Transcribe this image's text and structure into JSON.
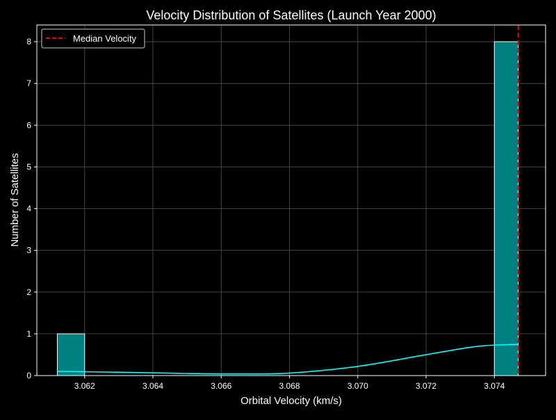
{
  "chart_data": {
    "type": "bar",
    "title": "Velocity Distribution of Satellites (Launch Year 2000)",
    "xlabel": "Orbital Velocity (km/s)",
    "ylabel": "Number of Satellites",
    "xlim": [
      3.0606,
      3.0755
    ],
    "ylim": [
      0,
      8.4
    ],
    "x_ticks": [
      "3.062",
      "3.064",
      "3.066",
      "3.068",
      "3.070",
      "3.072",
      "3.074"
    ],
    "x_tick_values": [
      3.062,
      3.064,
      3.066,
      3.068,
      3.07,
      3.072,
      3.074
    ],
    "y_ticks": [
      "0",
      "1",
      "2",
      "3",
      "4",
      "5",
      "6",
      "7",
      "8"
    ],
    "y_tick_values": [
      0,
      1,
      2,
      3,
      4,
      5,
      6,
      7,
      8
    ],
    "grid": true,
    "bars": [
      {
        "x0": 3.0612,
        "x1": 3.062,
        "count": 1
      },
      {
        "x0": 3.074,
        "x1": 3.0747,
        "count": 8
      }
    ],
    "kde": {
      "x": [
        3.0612,
        3.063,
        3.065,
        3.0665,
        3.068,
        3.07,
        3.072,
        3.0735,
        3.0747
      ],
      "y": [
        0.1,
        0.08,
        0.05,
        0.04,
        0.06,
        0.22,
        0.5,
        0.7,
        0.75
      ]
    },
    "median_velocity": 3.0747,
    "legend": {
      "label": "Median Velocity",
      "position": "upper-left"
    },
    "colors": {
      "background": "#000000",
      "bar_fill": "#008080",
      "bar_edge": "#ffffff",
      "kde": "#00ffff",
      "median": "#ff0000",
      "grid": "#555555"
    }
  }
}
